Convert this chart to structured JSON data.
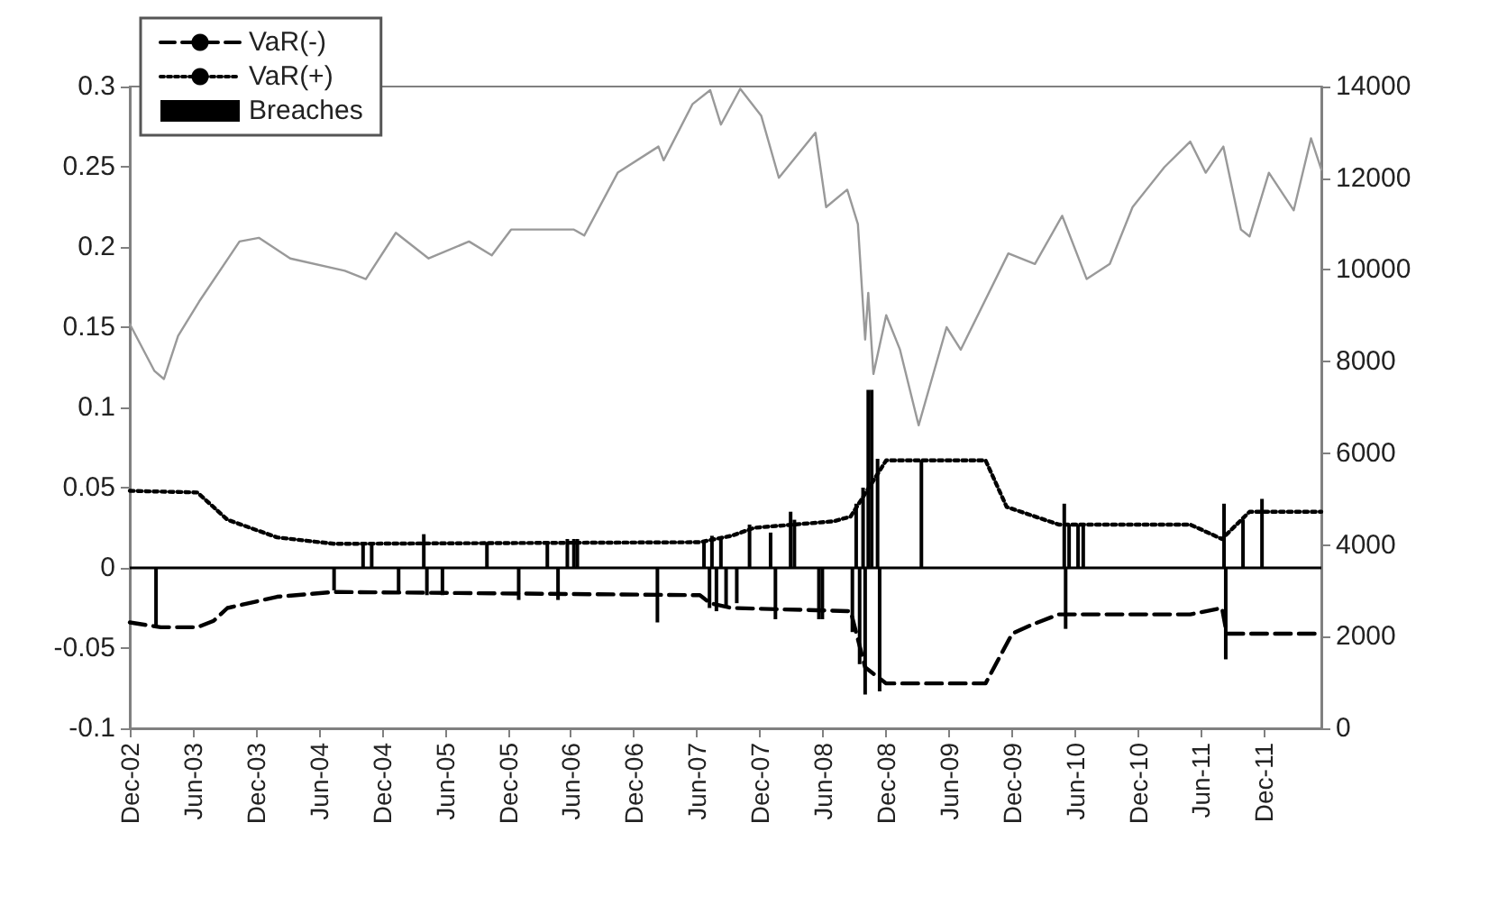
{
  "chart_data": {
    "type": "line",
    "legend": "top left",
    "marker": "none",
    "grid": false,
    "xlim": [
      "2002-12-01",
      "2012-05-15"
    ],
    "xticks": [
      {
        "value": "2002-12-01",
        "label": "Dec-02"
      },
      {
        "value": "2003-06-01",
        "label": "Jun-03"
      },
      {
        "value": "2003-12-01",
        "label": "Dec-03"
      },
      {
        "value": "2004-06-01",
        "label": "Jun-04"
      },
      {
        "value": "2004-12-01",
        "label": "Dec-04"
      },
      {
        "value": "2005-06-01",
        "label": "Jun-05"
      },
      {
        "value": "2005-12-01",
        "label": "Dec-05"
      },
      {
        "value": "2006-06-01",
        "label": "Jun-06"
      },
      {
        "value": "2006-12-01",
        "label": "Dec-06"
      },
      {
        "value": "2007-06-01",
        "label": "Jun-07"
      },
      {
        "value": "2007-12-01",
        "label": "Dec-07"
      },
      {
        "value": "2008-06-01",
        "label": "Jun-08"
      },
      {
        "value": "2008-12-01",
        "label": "Dec-08"
      },
      {
        "value": "2009-06-01",
        "label": "Jun-09"
      },
      {
        "value": "2009-12-01",
        "label": "Dec-09"
      },
      {
        "value": "2010-06-01",
        "label": "Jun-10"
      },
      {
        "value": "2010-12-01",
        "label": "Dec-10"
      },
      {
        "value": "2011-06-01",
        "label": "Jun-11"
      },
      {
        "value": "2011-12-01",
        "label": "Dec-11"
      }
    ],
    "ylim": [
      -0.1,
      0.3
    ],
    "yticks": [
      -0.1,
      -0.05,
      0,
      0.05,
      0.1,
      0.15,
      0.2,
      0.25,
      0.3
    ],
    "y2lim": [
      0,
      14000
    ],
    "y2ticks": [
      0,
      2000,
      4000,
      6000,
      8000,
      10000,
      12000,
      14000
    ],
    "ref_lines": [
      {
        "axis": "y",
        "value": 0,
        "color": "#000000",
        "line_style": "solid"
      }
    ],
    "series": [
      {
        "name": "VaR(-)",
        "line_style": "dashed",
        "color": "#000000",
        "x": [
          "2002-12-01",
          "2003-03-01",
          "2003-06-15",
          "2003-08-01",
          "2003-09-10",
          "2004-02-01",
          "2004-07-15",
          "2007-06-10",
          "2007-07-10",
          "2007-09-10",
          "2008-08-20",
          "2008-10-01",
          "2008-12-01",
          "2009-09-15",
          "2009-12-01",
          "2010-02-01",
          "2010-04-15",
          "2011-05-01",
          "2011-08-01",
          "2011-08-15",
          "2012-05-15"
        ],
        "values": [
          -0.034,
          -0.037,
          -0.037,
          -0.033,
          -0.025,
          -0.018,
          -0.015,
          -0.017,
          -0.022,
          -0.025,
          -0.027,
          -0.062,
          -0.072,
          -0.072,
          -0.041,
          -0.035,
          -0.029,
          -0.029,
          -0.025,
          -0.041,
          -0.041
        ]
      },
      {
        "name": "VaR(+)",
        "line_style": "dotted",
        "color": "#000000",
        "x": [
          "2002-12-01",
          "2003-06-15",
          "2003-09-10",
          "2004-02-01",
          "2004-07-15",
          "2007-06-10",
          "2007-09-10",
          "2007-11-15",
          "2008-07-01",
          "2008-08-20",
          "2008-12-01",
          "2009-09-15",
          "2009-11-15",
          "2010-04-15",
          "2011-05-01",
          "2011-08-01",
          "2011-10-20",
          "2012-05-15"
        ],
        "values": [
          0.048,
          0.047,
          0.03,
          0.019,
          0.015,
          0.016,
          0.02,
          0.025,
          0.029,
          0.032,
          0.067,
          0.067,
          0.038,
          0.027,
          0.027,
          0.018,
          0.035,
          0.035
        ]
      },
      {
        "name": "Breaches",
        "type": "bar",
        "color": "#000000",
        "x": [
          "2003-02-15",
          "2004-07-15",
          "2004-10-07",
          "2004-11-01",
          "2005-01-18",
          "2005-04-01",
          "2005-04-10",
          "2005-05-25",
          "2005-10-01",
          "2006-01-01",
          "2006-03-25",
          "2006-04-25",
          "2006-05-22",
          "2006-06-10",
          "2006-06-20",
          "2007-02-07",
          "2007-06-22",
          "2007-07-08",
          "2007-07-15",
          "2007-07-28",
          "2007-08-10",
          "2007-08-25",
          "2007-09-25",
          "2007-11-01",
          "2008-01-01",
          "2008-01-15",
          "2008-02-28",
          "2008-03-10",
          "2008-05-20",
          "2008-05-30",
          "2008-08-25",
          "2008-09-05",
          "2008-09-15",
          "2008-09-25",
          "2008-10-01",
          "2008-10-10",
          "2008-10-20",
          "2008-11-06",
          "2008-11-12",
          "2009-03-13",
          "2010-05-01",
          "2010-05-05",
          "2010-05-15",
          "2010-06-10",
          "2010-06-25",
          "2011-08-07",
          "2011-08-12",
          "2011-10-01",
          "2011-11-25"
        ],
        "values": [
          -0.036,
          -0.014,
          0.016,
          0.016,
          -0.016,
          0.021,
          -0.017,
          -0.017,
          0.016,
          -0.02,
          0.015,
          -0.02,
          0.018,
          0.018,
          0.018,
          -0.034,
          0.017,
          -0.025,
          0.02,
          -0.027,
          0.018,
          -0.025,
          -0.022,
          0.027,
          0.022,
          -0.032,
          0.035,
          0.03,
          -0.032,
          -0.032,
          -0.04,
          0.04,
          -0.06,
          0.05,
          -0.079,
          0.111,
          0.111,
          0.068,
          -0.077,
          0.067,
          0.04,
          -0.038,
          0.027,
          0.027,
          0.027,
          0.04,
          -0.057,
          0.03,
          0.043
        ]
      },
      {
        "axis": "y2",
        "line_style": "solid",
        "color": "#999999",
        "x": [
          "2002-12-01",
          "2003-02-10",
          "2003-03-10",
          "2003-04-20",
          "2003-06-20",
          "2003-10-15",
          "2003-12-10",
          "2004-03-10",
          "2004-08-15",
          "2004-10-15",
          "2005-01-10",
          "2005-04-15",
          "2005-08-10",
          "2005-10-15",
          "2005-12-10",
          "2006-06-10",
          "2006-07-10",
          "2006-10-15",
          "2007-02-10",
          "2007-02-25",
          "2007-05-20",
          "2007-07-10",
          "2007-08-10",
          "2007-10-05",
          "2007-12-05",
          "2008-01-25",
          "2008-05-10",
          "2008-06-10",
          "2008-08-10",
          "2008-09-10",
          "2008-10-01",
          "2008-10-10",
          "2008-10-25",
          "2008-12-01",
          "2009-01-10",
          "2009-03-05",
          "2009-05-25",
          "2009-07-05",
          "2009-11-20",
          "2010-02-05",
          "2010-04-25",
          "2010-07-05",
          "2010-09-10",
          "2010-11-15",
          "2011-02-15",
          "2011-05-01",
          "2011-06-15",
          "2011-08-05",
          "2011-09-25",
          "2011-10-20",
          "2011-12-15",
          "2012-02-25",
          "2012-04-15",
          "2012-05-15"
        ],
        "values": [
          8820,
          7800,
          7620,
          8560,
          9310,
          10620,
          10700,
          10250,
          9980,
          9800,
          10810,
          10250,
          10620,
          10320,
          10880,
          10880,
          10750,
          12120,
          12690,
          12390,
          13620,
          13920,
          13170,
          13950,
          13360,
          12010,
          12990,
          11370,
          11750,
          11000,
          8480,
          9500,
          7730,
          9010,
          8260,
          6610,
          8750,
          8260,
          10360,
          10130,
          11180,
          9800,
          10130,
          11370,
          12240,
          12800,
          12120,
          12690,
          10880,
          10730,
          12120,
          11300,
          12870,
          12190
        ]
      }
    ]
  }
}
